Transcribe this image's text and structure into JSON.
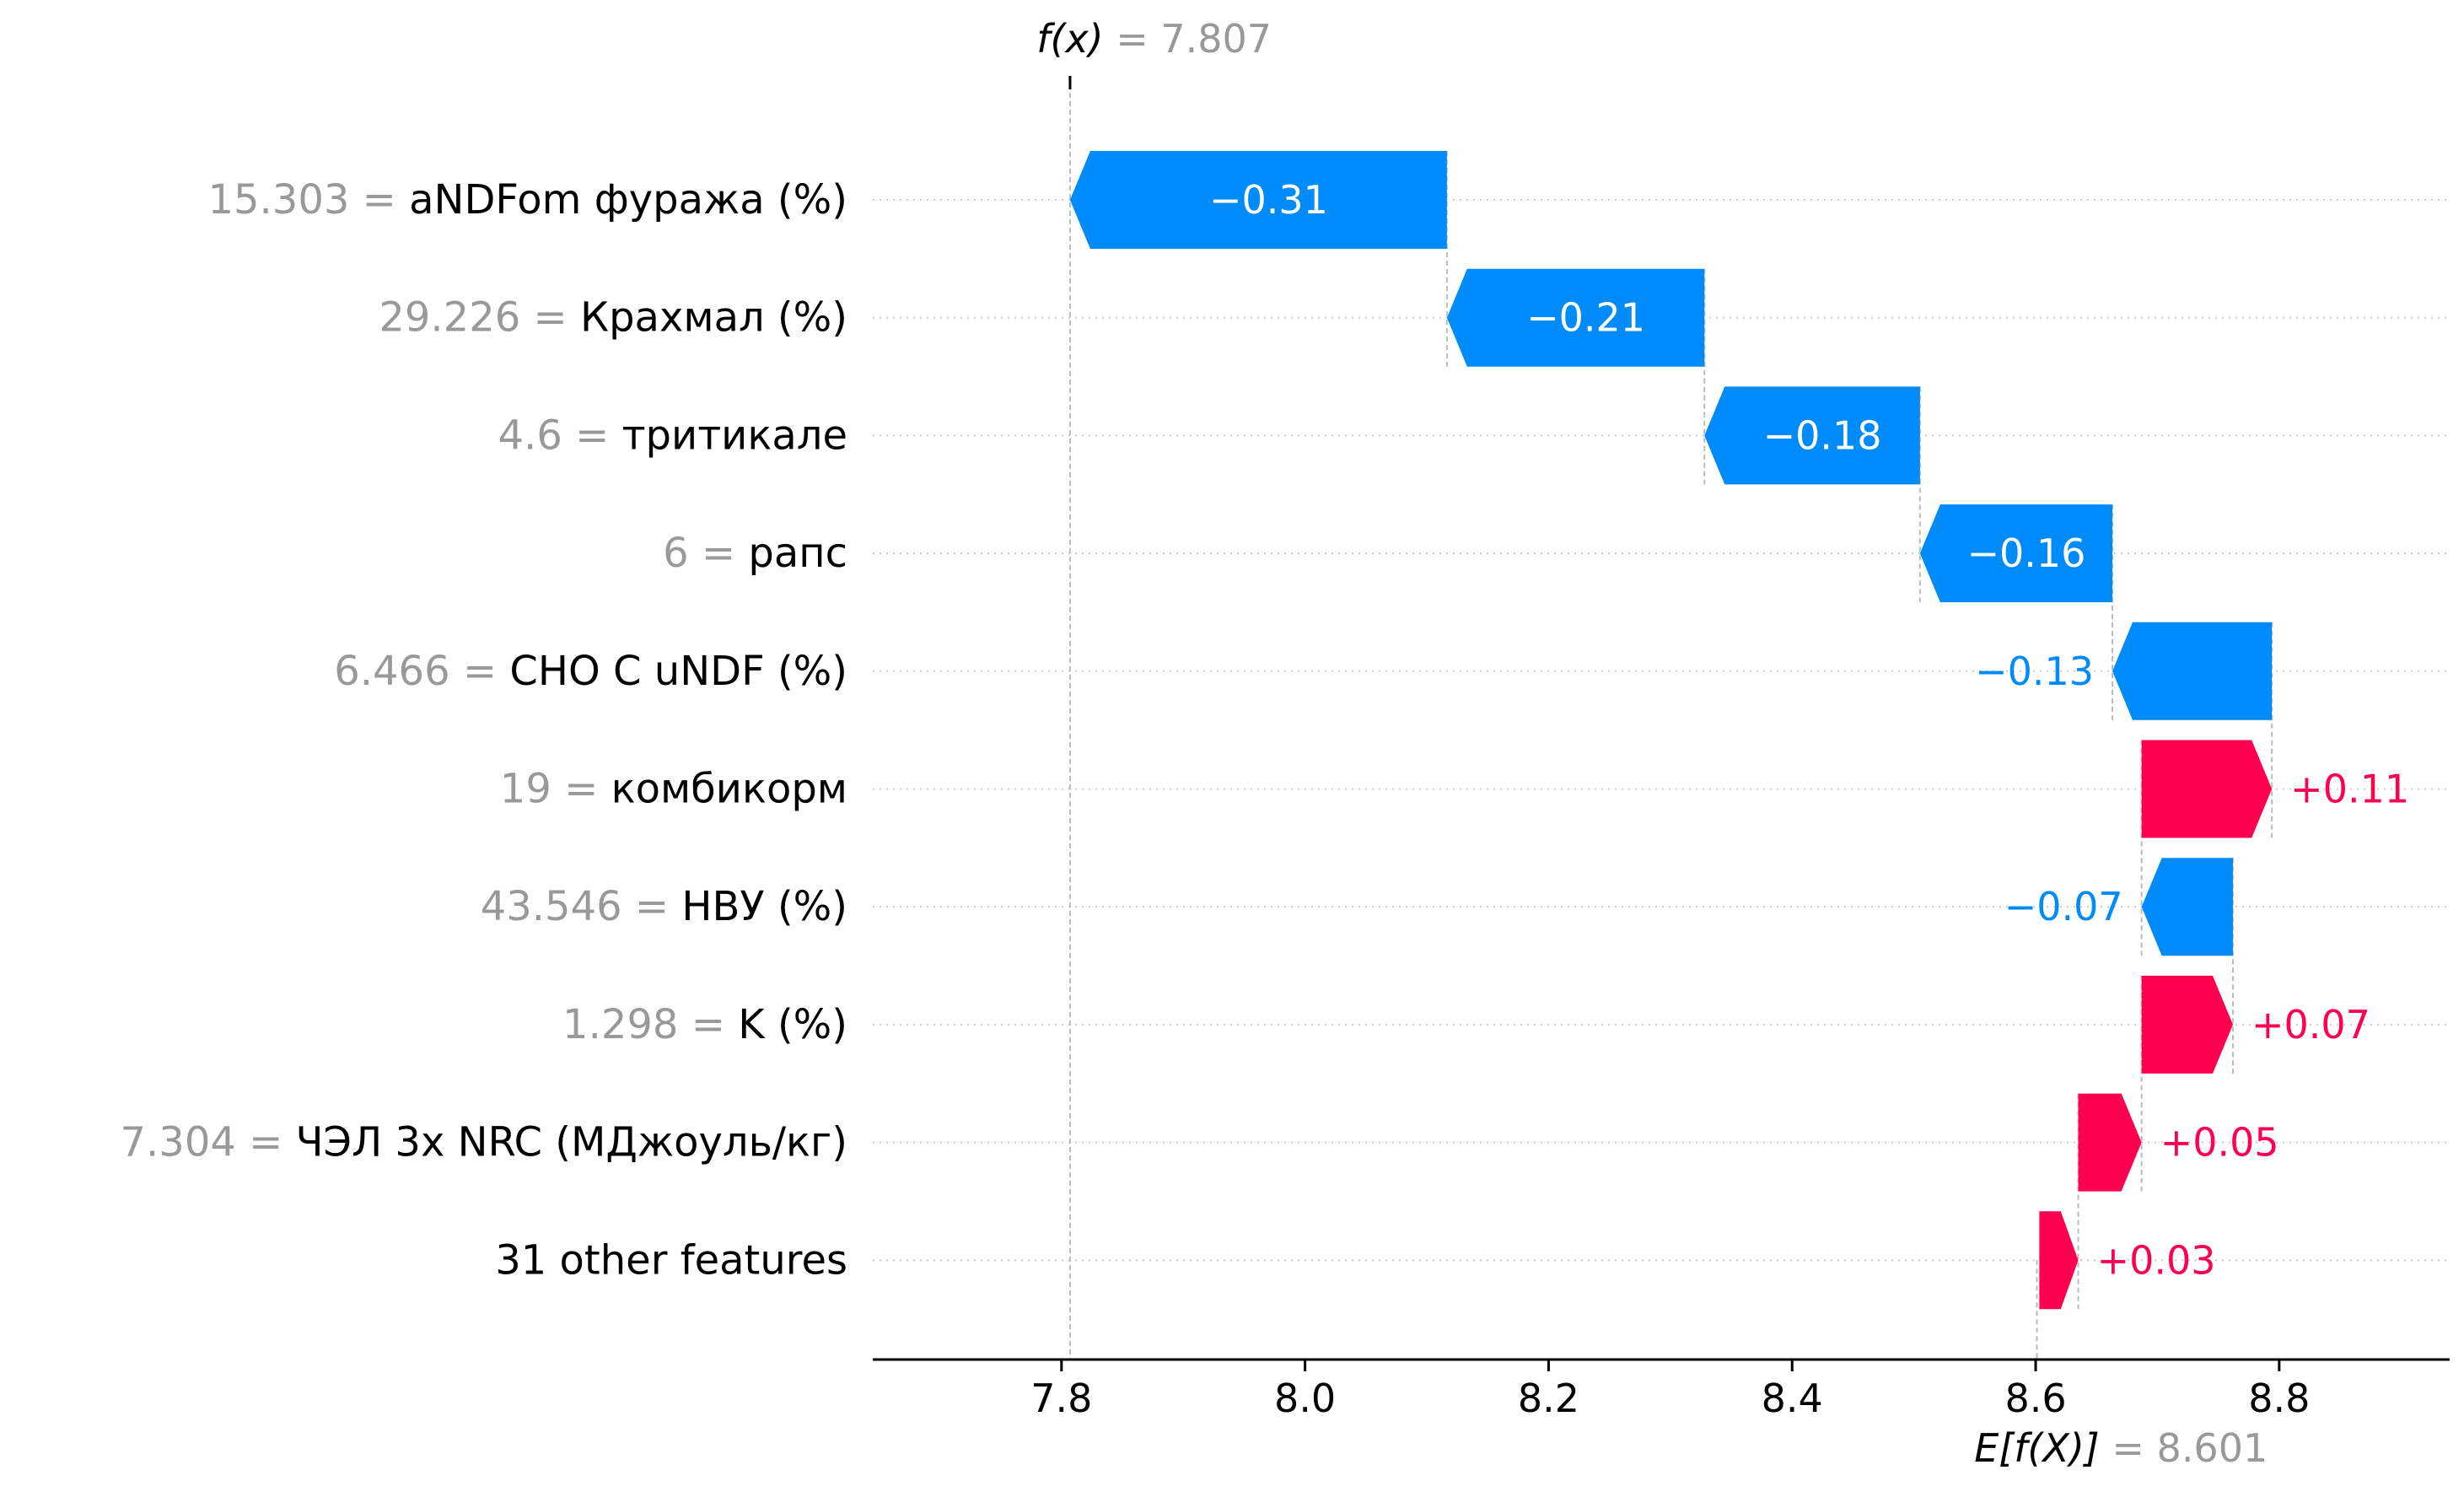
{
  "chart_data": {
    "type": "waterfall",
    "fx_label": "f(x)",
    "fx_value": "7.807",
    "fx": 7.807,
    "ex_label": "E[f(X)]",
    "ex_value": "8.601",
    "ex": 8.601,
    "xlim": [
      7.645,
      8.94
    ],
    "xticks": [
      {
        "value": 7.8,
        "label": "7.8"
      },
      {
        "value": 8.0,
        "label": "8.0"
      },
      {
        "value": 8.2,
        "label": "8.2"
      },
      {
        "value": 8.4,
        "label": "8.4"
      },
      {
        "value": 8.6,
        "label": "8.6"
      },
      {
        "value": 8.8,
        "label": "8.8"
      }
    ],
    "features": [
      {
        "value_label": "15.303",
        "name": "aNDFom фуража (%)",
        "contribution": -0.3095,
        "label": "−0.31"
      },
      {
        "value_label": "29.226",
        "name": "Крахмал (%)",
        "contribution": -0.2115,
        "label": "−0.21"
      },
      {
        "value_label": "4.6",
        "name": "тритикале",
        "contribution": -0.177,
        "label": "−0.18"
      },
      {
        "value_label": "6",
        "name": "рапс",
        "contribution": -0.158,
        "label": "−0.16"
      },
      {
        "value_label": "6.466",
        "name": "CHO C uNDF (%)",
        "contribution": -0.131,
        "label": "−0.13"
      },
      {
        "value_label": "19",
        "name": "комбикорм",
        "contribution": 0.107,
        "label": "+0.11"
      },
      {
        "value_label": "43.546",
        "name": "НВУ (%)",
        "contribution": -0.075,
        "label": "−0.07"
      },
      {
        "value_label": "1.298",
        "name": "K (%)",
        "contribution": 0.075,
        "label": "+0.07"
      },
      {
        "value_label": "7.304",
        "name": "ЧЭЛ 3x NRC (МДжоуль/кг)",
        "contribution": 0.052,
        "label": "+0.05"
      },
      {
        "value_label": "",
        "name": "31 other features",
        "contribution": 0.032,
        "label": "+0.03"
      }
    ],
    "colors": {
      "positive": "#ff0051",
      "negative": "#008bfb"
    }
  }
}
